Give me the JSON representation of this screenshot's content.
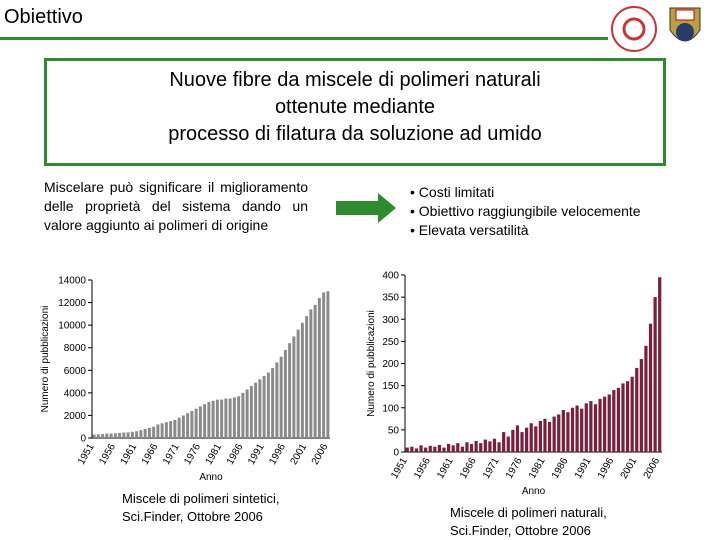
{
  "header": {
    "title": "Obiettivo"
  },
  "box": {
    "lines": [
      "Nuove fibre da miscele di polimeri naturali",
      "ottenute mediante",
      "processo di filatura da soluzione ad umido"
    ]
  },
  "paragraph": "Miscelare può significare il miglioramento delle proprietà del sistema dando un valore aggiunto ai polimeri di origine",
  "bullets": [
    "Costi limitati",
    "Obiettivo raggiungibile velocemente",
    "Elevata versatilità"
  ],
  "captions": [
    [
      "Miscele di polimeri sintetici,",
      "Sci.Finder, Ottobre 2006"
    ],
    [
      "Miscele di polimeri naturali,",
      "Sci.Finder, Ottobre 2006"
    ]
  ],
  "chart_data": [
    {
      "type": "bar",
      "ylabel": "Numero di pubblicazioni",
      "xlabel": "Anno",
      "color": "#8a8a8a",
      "categories": [
        "1951",
        null,
        null,
        null,
        null,
        "1956",
        null,
        null,
        null,
        null,
        "1961",
        null,
        null,
        null,
        null,
        "1966",
        null,
        null,
        null,
        null,
        "1971",
        null,
        null,
        null,
        null,
        "1976",
        null,
        null,
        null,
        null,
        "1981",
        null,
        null,
        null,
        null,
        "1986",
        null,
        null,
        null,
        null,
        "1991",
        null,
        null,
        null,
        null,
        "1996",
        null,
        null,
        null,
        null,
        "2001",
        null,
        null,
        null,
        null,
        "2006"
      ],
      "values": [
        300,
        320,
        350,
        380,
        400,
        420,
        450,
        480,
        500,
        550,
        600,
        700,
        800,
        900,
        1000,
        1200,
        1300,
        1400,
        1500,
        1600,
        1800,
        2000,
        2200,
        2400,
        2600,
        2800,
        3000,
        3200,
        3300,
        3400,
        3400,
        3500,
        3500,
        3600,
        3700,
        4000,
        4300,
        4600,
        4900,
        5200,
        5500,
        5800,
        6200,
        6700,
        7200,
        7800,
        8400,
        9000,
        9600,
        10200,
        10800,
        11400,
        11800,
        12400,
        12900,
        13000
      ],
      "ylim": [
        0,
        14000
      ],
      "yticks": [
        0,
        2000,
        4000,
        6000,
        8000,
        10000,
        12000,
        14000
      ]
    },
    {
      "type": "bar",
      "ylabel": "Numero di pubblicazioni",
      "xlabel": "Anno",
      "color": "#7a1f3d",
      "categories": [
        "1951",
        null,
        null,
        null,
        null,
        "1956",
        null,
        null,
        null,
        null,
        "1961",
        null,
        null,
        null,
        null,
        "1966",
        null,
        null,
        null,
        null,
        "1971",
        null,
        null,
        null,
        null,
        "1976",
        null,
        null,
        null,
        null,
        "1981",
        null,
        null,
        null,
        null,
        "1986",
        null,
        null,
        null,
        null,
        "1991",
        null,
        null,
        null,
        null,
        "1996",
        null,
        null,
        null,
        null,
        "2001",
        null,
        null,
        null,
        null,
        "2006"
      ],
      "values": [
        10,
        12,
        8,
        15,
        10,
        14,
        12,
        16,
        10,
        18,
        15,
        20,
        12,
        22,
        18,
        25,
        20,
        28,
        24,
        30,
        22,
        45,
        35,
        50,
        60,
        45,
        55,
        65,
        58,
        70,
        75,
        68,
        80,
        85,
        95,
        90,
        100,
        105,
        98,
        110,
        115,
        108,
        120,
        125,
        130,
        140,
        145,
        155,
        160,
        170,
        190,
        210,
        240,
        290,
        350,
        395
      ],
      "ylim": [
        0,
        400
      ],
      "yticks": [
        0,
        50,
        100,
        150,
        200,
        250,
        300,
        350,
        400
      ]
    }
  ]
}
